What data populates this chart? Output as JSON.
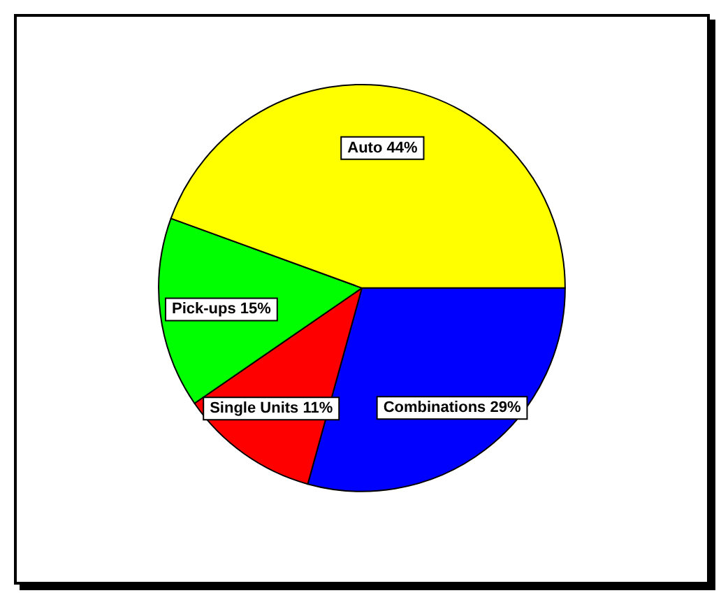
{
  "chart_data": {
    "type": "pie",
    "categories": [
      "Combinations",
      "Single Units",
      "Pick-ups",
      "Auto"
    ],
    "values": [
      29,
      11,
      15,
      44
    ],
    "colors": [
      "#0000ff",
      "#ff0000",
      "#00ff00",
      "#ffff00"
    ],
    "value_labels": [
      "29%",
      "11%",
      "15%",
      "44%"
    ],
    "legend": false
  }
}
